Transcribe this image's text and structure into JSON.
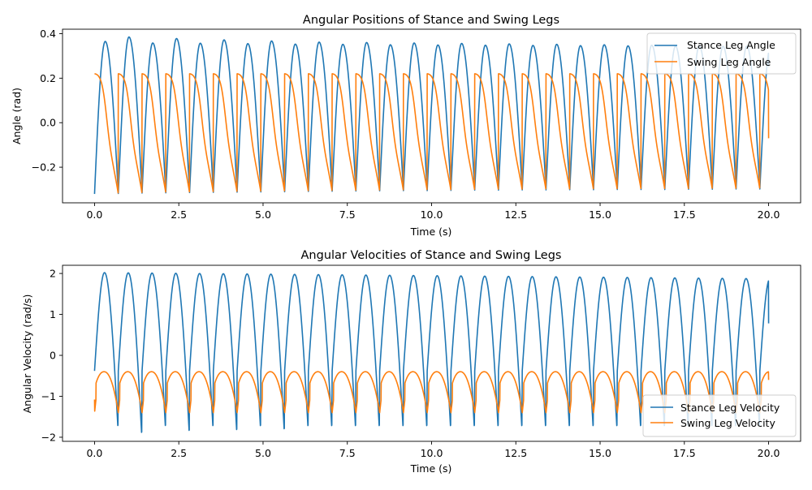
{
  "chart_data": [
    {
      "type": "line",
      "title": "Angular Positions of Stance and Swing Legs",
      "xlabel": "Time (s)",
      "ylabel": "Angle (rad)",
      "xlim": [
        -0.95,
        20.95
      ],
      "ylim": [
        -0.36,
        0.42
      ],
      "xticks": [
        0.0,
        2.5,
        5.0,
        7.5,
        10.0,
        12.5,
        15.0,
        17.5,
        20.0
      ],
      "xtick_labels": [
        "0.0",
        "2.5",
        "5.0",
        "7.5",
        "10.0",
        "12.5",
        "15.0",
        "17.5",
        "20.0"
      ],
      "yticks": [
        -0.2,
        0.0,
        0.2,
        0.4
      ],
      "ytick_labels": [
        "−0.2",
        "0.0",
        "0.2",
        "0.4"
      ],
      "legend_position": "top-right",
      "grid": false,
      "x_range": [
        0,
        20
      ],
      "step_period": 0.705,
      "series": [
        {
          "name": "Stance Leg Angle",
          "color": "#1f77b4",
          "pattern": "stance-angle",
          "start": -0.32,
          "peaks": [
            0.365,
            0.385,
            0.358,
            0.378,
            0.357,
            0.372,
            0.355,
            0.367,
            0.353,
            0.362,
            0.352,
            0.36,
            0.35,
            0.358,
            0.349,
            0.356,
            0.348,
            0.354,
            0.347,
            0.352,
            0.346,
            0.35,
            0.345,
            0.348,
            0.344,
            0.346,
            0.343,
            0.344,
            0.342
          ],
          "troughs": [
            -0.32,
            -0.318,
            -0.316,
            -0.315,
            -0.314,
            -0.313,
            -0.312,
            -0.311,
            -0.31,
            -0.309,
            -0.308,
            -0.307,
            -0.306,
            -0.305,
            -0.305,
            -0.304,
            -0.303,
            -0.303,
            -0.302,
            -0.302,
            -0.301,
            -0.301,
            -0.3,
            -0.3,
            -0.3,
            -0.299,
            -0.299,
            -0.298,
            -0.298
          ],
          "end": 0.25
        },
        {
          "name": "Swing Leg Angle",
          "color": "#ff7f0e",
          "pattern": "swing-angle",
          "start": 0.22,
          "reset_high": 0.22,
          "reset_lows": [
            -0.32,
            -0.318,
            -0.316,
            -0.315,
            -0.314,
            -0.313,
            -0.312,
            -0.311,
            -0.31,
            -0.309,
            -0.308,
            -0.307,
            -0.306,
            -0.305,
            -0.305,
            -0.304,
            -0.303,
            -0.303,
            -0.302,
            -0.302,
            -0.301,
            -0.301,
            -0.3,
            -0.3,
            -0.3,
            -0.299,
            -0.299,
            -0.298,
            -0.298
          ],
          "end": -0.07
        }
      ]
    },
    {
      "type": "line",
      "title": "Angular Velocities of Stance and Swing Legs",
      "xlabel": "Time (s)",
      "ylabel": "Angular Velocity (rad/s)",
      "xlim": [
        -0.95,
        20.95
      ],
      "ylim": [
        -2.1,
        2.2
      ],
      "xticks": [
        0.0,
        2.5,
        5.0,
        7.5,
        10.0,
        12.5,
        15.0,
        17.5,
        20.0
      ],
      "xtick_labels": [
        "0.0",
        "2.5",
        "5.0",
        "7.5",
        "10.0",
        "12.5",
        "15.0",
        "17.5",
        "20.0"
      ],
      "yticks": [
        -2,
        -1,
        0,
        1,
        2
      ],
      "ytick_labels": [
        "−2",
        "−1",
        "0",
        "1",
        "2"
      ],
      "legend_position": "bottom-right",
      "grid": false,
      "x_range": [
        0,
        20
      ],
      "step_period": 0.705,
      "series": [
        {
          "name": "Stance Leg Velocity",
          "color": "#1f77b4",
          "pattern": "stance-velocity",
          "start": -0.38,
          "peak": 2.02,
          "peak_end": 1.87,
          "trough": -1.78,
          "trough_deep": [
            -1.95,
            -1.9,
            -1.88,
            -1.86
          ],
          "end": 0.78
        },
        {
          "name": "Swing Leg Velocity",
          "color": "#ff7f0e",
          "pattern": "swing-velocity",
          "start": -1.08,
          "peak": -0.4,
          "trough": -1.4,
          "end": -0.6
        }
      ]
    }
  ]
}
